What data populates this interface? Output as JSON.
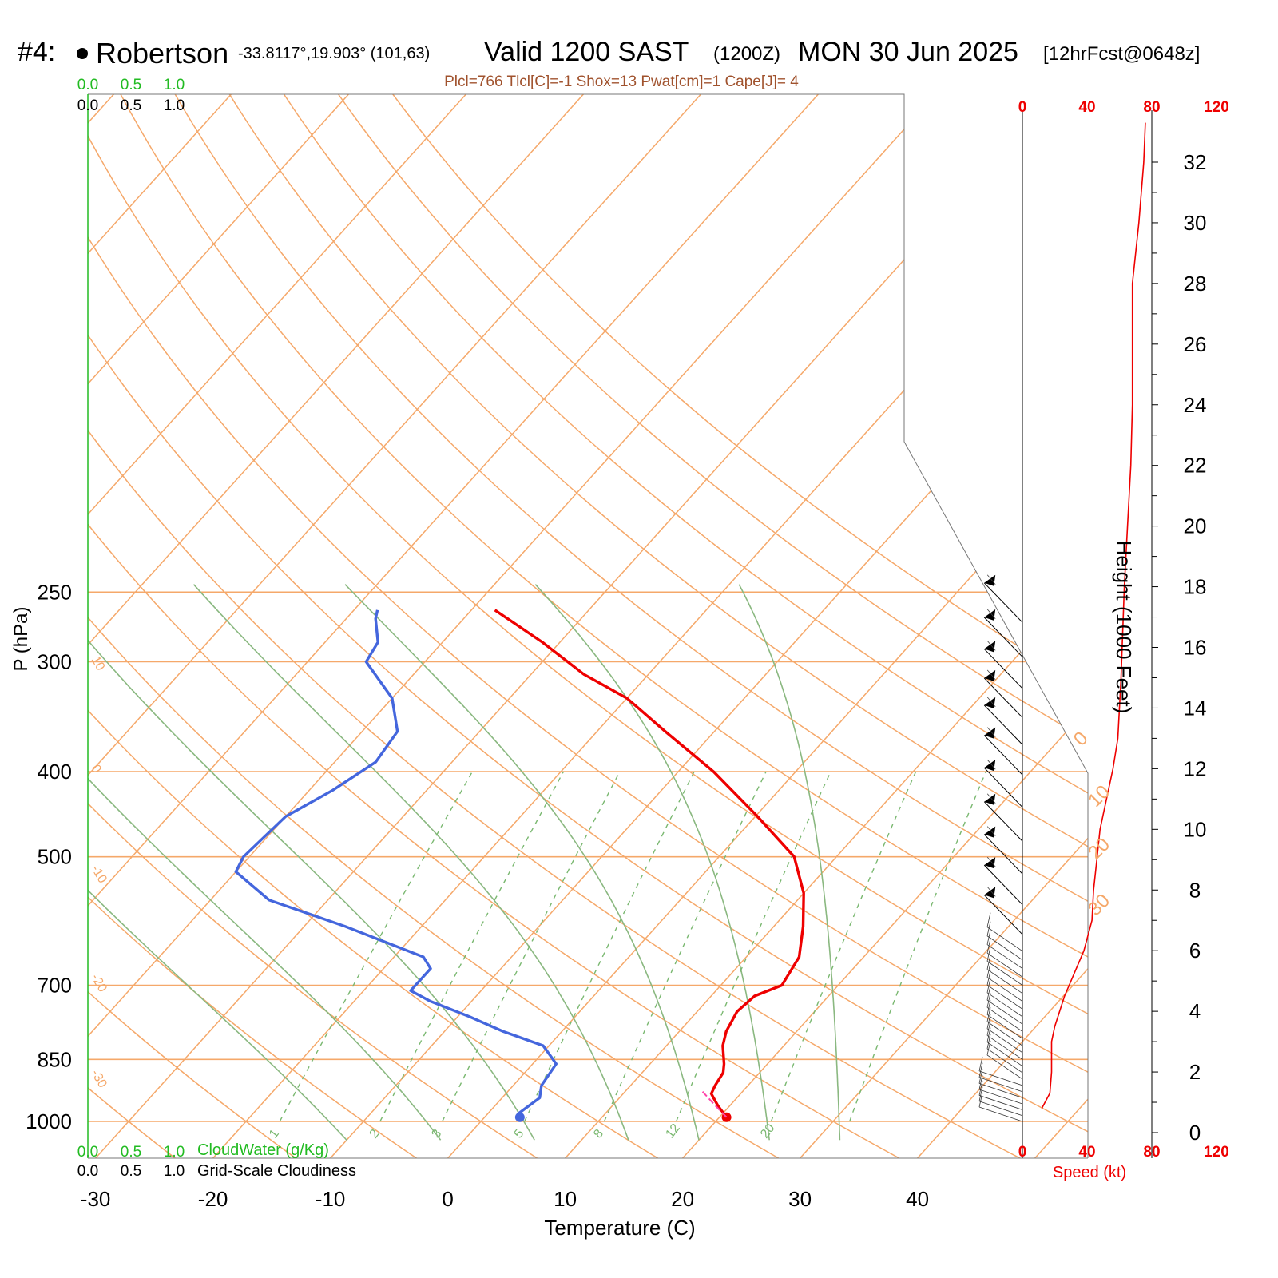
{
  "header": {
    "plot_no": "#4:",
    "station": "Robertson",
    "coords": "-33.8117°,19.903° (101,63)",
    "valid": "Valid 1200 SAST",
    "zulu": "(1200Z)",
    "date": "MON 30 Jun 2025",
    "forecast": "[12hrFcst@0648z]"
  },
  "indices": "Plcl=766 Tlcl[C]=-1 Shox=13 Pwat[cm]=1 Cape[J]= 4",
  "cloud_scale": {
    "labels": [
      "0.0",
      "0.5",
      "1.0"
    ],
    "cloudwater_label": "CloudWater (g/Kg)",
    "cloudiness_label": "Grid-Scale Cloudiness"
  },
  "colors": {
    "temperature": "#ee0000",
    "dewpoint": "#4466dd",
    "isotherm": "#f5a86a",
    "dry_adiabat": "#f5a86a",
    "moist_adiabat": "#8ab880",
    "mixing_ratio": "#7ab870",
    "cloudwater": "#22bb22",
    "speed": "#ee0000",
    "parcel": "#ff44aa"
  },
  "chart_data": {
    "type": "line",
    "xlabel": "Temperature (C)",
    "ylabel": "P (hPa)",
    "x_ticks": [
      -30,
      -20,
      -10,
      0,
      10,
      20,
      30,
      40
    ],
    "y_ticks": [
      250,
      300,
      400,
      500,
      700,
      850,
      1000
    ],
    "right_axis_label": "Height (1000 Feet)",
    "height_ticks": [
      0,
      2,
      4,
      6,
      8,
      10,
      12,
      14,
      16,
      18,
      20,
      22,
      24,
      26,
      28,
      30,
      32
    ],
    "speed_ticks": [
      0,
      40,
      80,
      120
    ],
    "speed_label": "Speed (kt)",
    "isotherm_labels": [
      {
        "p": 375,
        "t": 0
      },
      {
        "p": 440,
        "t": 10
      },
      {
        "p": 505,
        "t": 20
      },
      {
        "p": 585,
        "t": 30
      }
    ],
    "dry_adiabat_labels": [
      {
        "p": 298,
        "th": "10"
      },
      {
        "p": 396,
        "th": "0"
      },
      {
        "p": 515,
        "th": "-10"
      },
      {
        "p": 685,
        "th": "-20"
      },
      {
        "p": 880,
        "th": "-30"
      }
    ],
    "mixing_ratio_labels": [
      {
        "w": 1,
        "l": "1"
      },
      {
        "w": 2,
        "l": "2"
      },
      {
        "w": 3,
        "l": "3"
      },
      {
        "w": 5,
        "l": "5"
      },
      {
        "w": 8,
        "l": "8"
      },
      {
        "w": 12,
        "l": "12"
      },
      {
        "w": 20,
        "l": "20"
      }
    ],
    "series": [
      {
        "name": "Temperature",
        "points": [
          [
            989,
            20.6
          ],
          [
            960,
            19.0
          ],
          [
            930,
            17.5
          ],
          [
            910,
            17.2
          ],
          [
            880,
            16.9
          ],
          [
            860,
            16.3
          ],
          [
            820,
            14.8
          ],
          [
            790,
            14.0
          ],
          [
            750,
            13.4
          ],
          [
            720,
            13.7
          ],
          [
            700,
            15.2
          ],
          [
            650,
            14.5
          ],
          [
            600,
            12.5
          ],
          [
            550,
            10.0
          ],
          [
            500,
            6.4
          ],
          [
            450,
            0.2
          ],
          [
            400,
            -7.0
          ],
          [
            360,
            -14.2
          ],
          [
            330,
            -20.0
          ],
          [
            310,
            -25.5
          ],
          [
            285,
            -31.5
          ],
          [
            262,
            -38.0
          ]
        ]
      },
      {
        "name": "Dewpoint",
        "points": [
          [
            989,
            3.0
          ],
          [
            980,
            2.6
          ],
          [
            940,
            3.2
          ],
          [
            910,
            2.4
          ],
          [
            860,
            2.0
          ],
          [
            820,
            -0.5
          ],
          [
            790,
            -5.0
          ],
          [
            760,
            -9.0
          ],
          [
            730,
            -13.5
          ],
          [
            710,
            -16.0
          ],
          [
            700,
            -16.0
          ],
          [
            670,
            -16.0
          ],
          [
            650,
            -17.5
          ],
          [
            600,
            -26.5
          ],
          [
            560,
            -35.0
          ],
          [
            520,
            -40.0
          ],
          [
            500,
            -40.5
          ],
          [
            450,
            -40.0
          ],
          [
            420,
            -38.0
          ],
          [
            390,
            -36.5
          ],
          [
            360,
            -37.0
          ],
          [
            330,
            -40.0
          ],
          [
            300,
            -45.0
          ],
          [
            285,
            -45.5
          ],
          [
            268,
            -47.5
          ],
          [
            262,
            -48.0
          ]
        ]
      },
      {
        "name": "Parcel",
        "points": [
          [
            989,
            20.6
          ],
          [
            960,
            18.8
          ],
          [
            925,
            16.6
          ]
        ]
      }
    ],
    "wind_speed_profile": [
      [
        0.8,
        12
      ],
      [
        1.3,
        17
      ],
      [
        2.0,
        18
      ],
      [
        3.0,
        18
      ],
      [
        3.5,
        20
      ],
      [
        4.5,
        26
      ],
      [
        6.0,
        38
      ],
      [
        7.0,
        43
      ],
      [
        8.0,
        44
      ],
      [
        9.0,
        46
      ],
      [
        10.0,
        48
      ],
      [
        11.0,
        52
      ],
      [
        12.0,
        56
      ],
      [
        13.0,
        59
      ],
      [
        15.0,
        61
      ],
      [
        18.0,
        63
      ],
      [
        20.0,
        65
      ],
      [
        22.0,
        67
      ],
      [
        24.0,
        68
      ],
      [
        26.0,
        68
      ],
      [
        28.0,
        68
      ],
      [
        30.0,
        72
      ],
      [
        32.0,
        75
      ],
      [
        33.3,
        76
      ]
    ],
    "wind_barbs_hPa": [
      265,
      290,
      315,
      340,
      365,
      395,
      430,
      470,
      512,
      555,
      600
    ]
  }
}
